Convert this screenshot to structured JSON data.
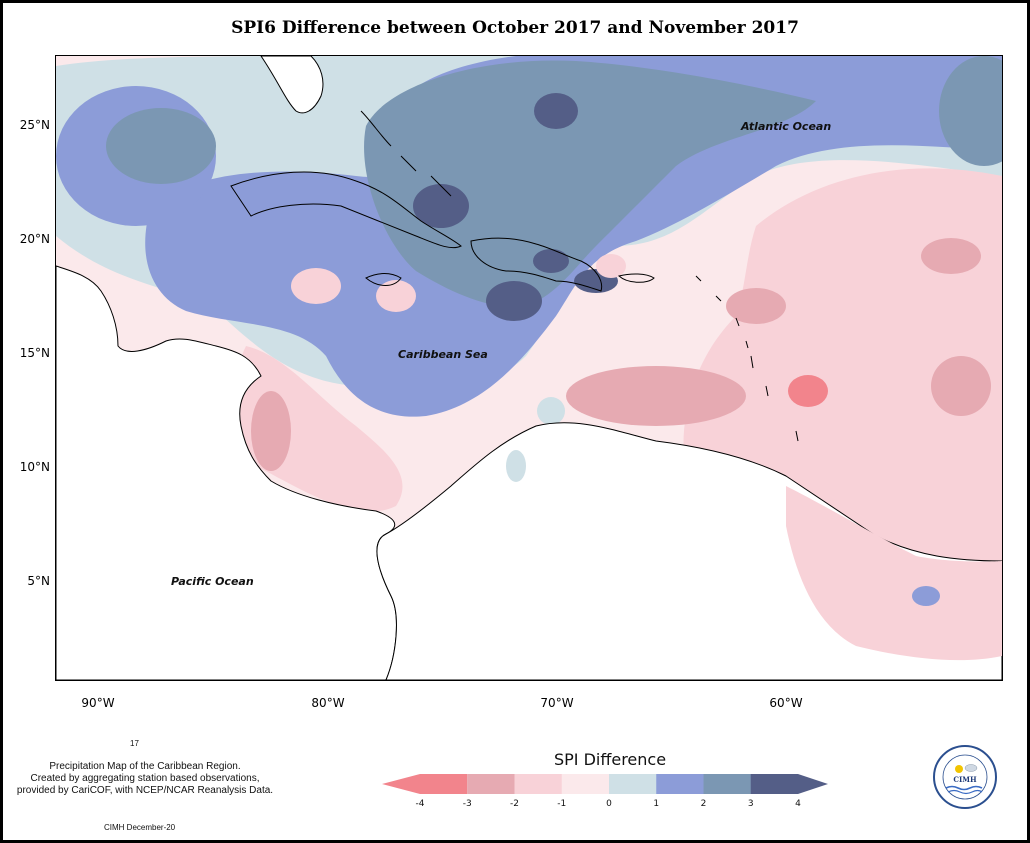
{
  "title": "SPI6 Difference between October 2017 and November 2017",
  "y_axis_labels": [
    "25°N",
    "20°N",
    "15°N",
    "10°N",
    "5°N"
  ],
  "x_axis_labels": [
    "90°W",
    "80°W",
    "70°W",
    "60°W"
  ],
  "ocean_labels": {
    "atlantic": "Atlantic Ocean",
    "caribbean": "Caribbean Sea",
    "pacific": "Pacific Ocean"
  },
  "legend": {
    "title": "SPI Difference",
    "ticks": [
      "-4",
      "-3",
      "-2",
      "-1",
      "0",
      "1",
      "2",
      "3",
      "4"
    ],
    "colors": [
      "#f2848c",
      "#e6aab2",
      "#f8d2d8",
      "#fbe9eb",
      "#cfe0e6",
      "#8c9cd8",
      "#7b97b3",
      "#545e87"
    ]
  },
  "note": {
    "stray": "17",
    "line1": "Precipitation Map of the Caribbean Region.",
    "line2": "Created by aggregating station based observations,",
    "line3": "provided by CariCOF, with NCEP/NCAR Reanalysis Data.",
    "credit": "CIMH December-20"
  },
  "logo": {
    "text": "CIMH",
    "ring_text": "Caribbean Institute for Meteorology and Hydrology"
  }
}
